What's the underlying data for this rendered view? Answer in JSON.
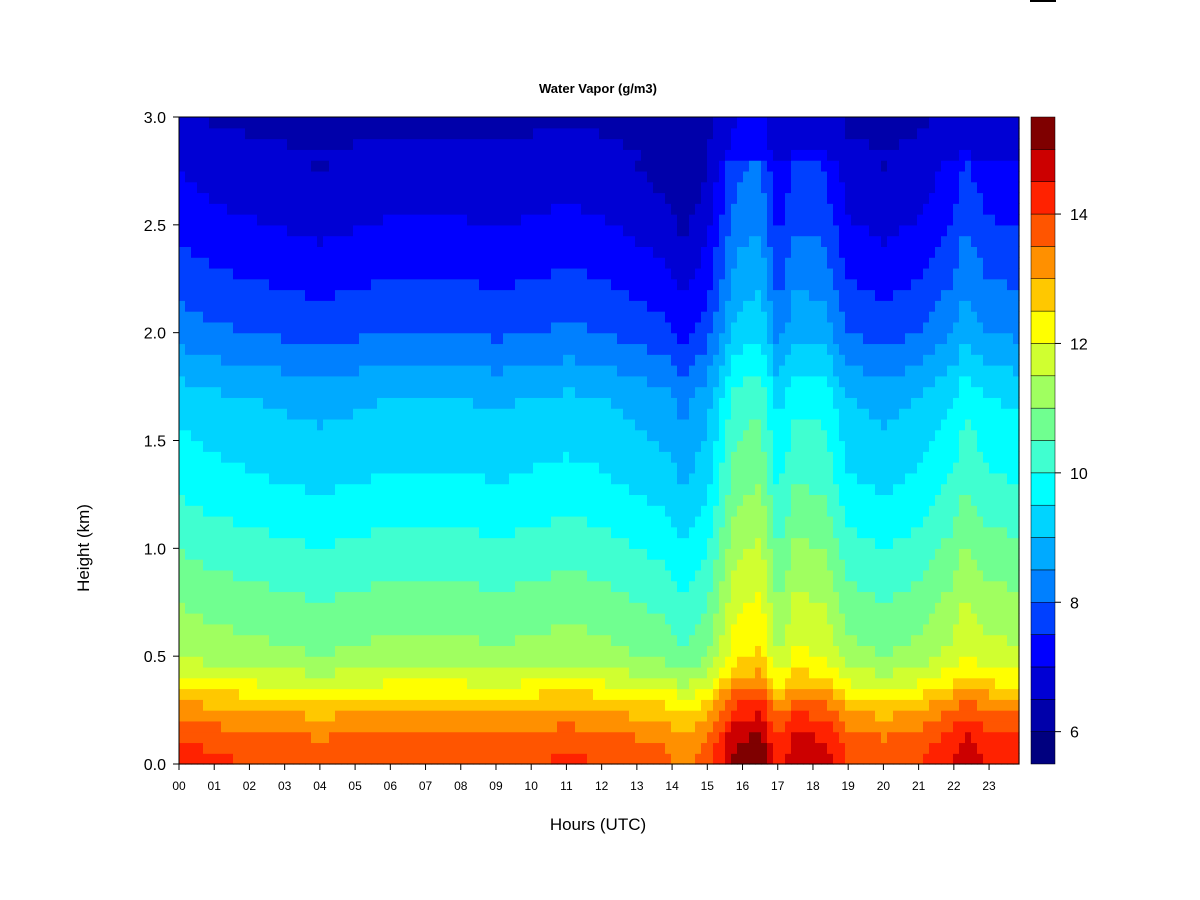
{
  "chart_data": {
    "type": "heatmap",
    "title": "Water Vapor (g/m3)",
    "xlabel": "Hours (UTC)",
    "ylabel": "Height (km)",
    "x_ticks": [
      "00",
      "01",
      "02",
      "03",
      "04",
      "05",
      "06",
      "07",
      "08",
      "09",
      "10",
      "11",
      "12",
      "13",
      "14",
      "15",
      "16",
      "17",
      "18",
      "19",
      "20",
      "21",
      "22",
      "23"
    ],
    "xlim": [
      0,
      23.85
    ],
    "y_ticks": [
      "0.0",
      "0.5",
      "1.0",
      "1.5",
      "2.0",
      "2.5",
      "3.0"
    ],
    "ylim": [
      0,
      3.0
    ],
    "colorbar": {
      "range": [
        5.5,
        15.5
      ],
      "levels": 20,
      "ticks": [
        "6",
        "8",
        "10",
        "12",
        "14"
      ],
      "colors": [
        "#00007F",
        "#0000AA",
        "#0000D4",
        "#0000FF",
        "#0040FF",
        "#0080FF",
        "#00AAFF",
        "#00D4FF",
        "#00FFFF",
        "#40FFD0",
        "#70FF90",
        "#A0FF60",
        "#D0FF30",
        "#FFFF00",
        "#FFC800",
        "#FF9000",
        "#FF5500",
        "#FF2200",
        "#CC0000",
        "#7F0000"
      ]
    },
    "profile_heights_km": [
      0.0,
      0.1,
      0.2,
      0.3,
      0.4,
      0.5,
      0.7,
      1.0,
      1.3,
      1.7,
      2.0,
      2.3,
      2.6,
      3.0
    ],
    "profile_values": [
      14.0,
      13.8,
      13.3,
      12.7,
      11.8,
      11.2,
      10.8,
      10.2,
      9.6,
      9.0,
      8.0,
      7.4,
      6.9,
      6.4
    ],
    "time_anomaly_hours": [
      0,
      1,
      2,
      3,
      4,
      5,
      6,
      7,
      8,
      9,
      10,
      11,
      12,
      13,
      14,
      14.3,
      15,
      15.8,
      16.5,
      17,
      17.5,
      18.3,
      19,
      20,
      21,
      22,
      22.3,
      23,
      23.85
    ],
    "time_anomaly_values": [
      0.3,
      0.1,
      0.0,
      -0.1,
      -0.2,
      -0.1,
      0.0,
      0.0,
      0.0,
      -0.1,
      0.0,
      0.1,
      0.0,
      -0.2,
      -0.4,
      -0.7,
      -0.2,
      1.2,
      1.4,
      0.3,
      0.9,
      0.8,
      0.0,
      -0.2,
      0.0,
      0.5,
      0.9,
      0.5,
      0.4
    ]
  }
}
